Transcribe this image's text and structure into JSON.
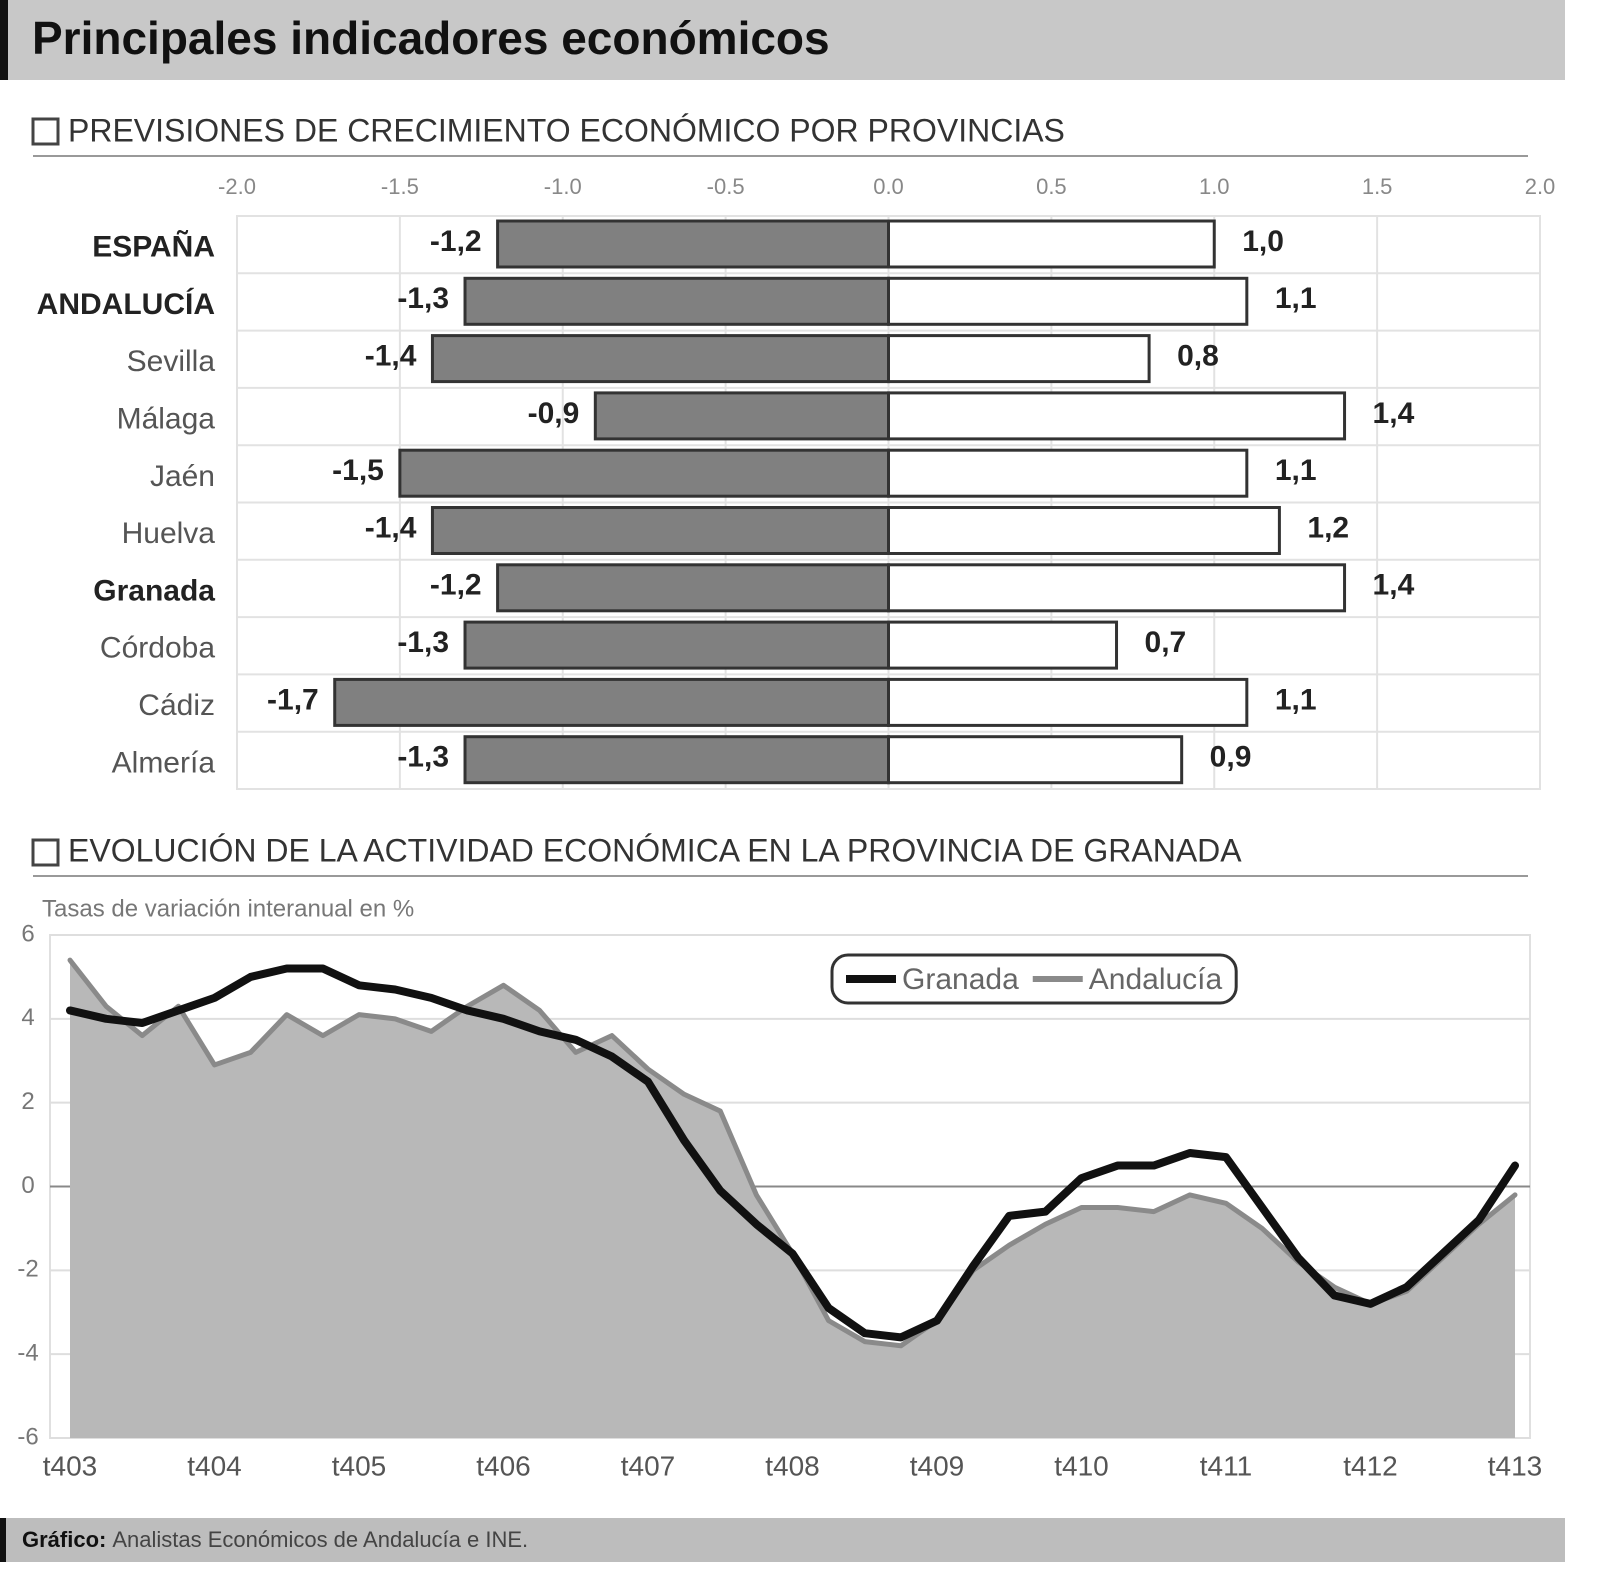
{
  "header": {
    "title": "Principales indicadores económicos"
  },
  "chart_data": [
    {
      "type": "bar",
      "orientation": "horizontal",
      "title": "PREVISIONES DE CRECIMIENTO ECONÓMICO POR PROVINCIAS",
      "categories": [
        "ESPAÑA",
        "ANDALUCÍA",
        "Sevilla",
        "Málaga",
        "Jaén",
        "Huelva",
        "Granada",
        "Córdoba",
        "Cádiz",
        "Almería"
      ],
      "series": [
        {
          "color": "#808080",
          "values": [
            -1.2,
            -1.3,
            -1.4,
            -0.9,
            -1.5,
            -1.4,
            -1.2,
            -1.3,
            -1.7,
            -1.3
          ],
          "value_labels": [
            "-1,2",
            "-1,3",
            "-1,4",
            "-0,9",
            "-1,5",
            "-1,4",
            "-1,2",
            "-1,3",
            "-1,7",
            "-1,3"
          ]
        },
        {
          "color": "#ffffff",
          "values": [
            1.0,
            1.1,
            0.8,
            1.4,
            1.1,
            1.2,
            1.4,
            0.7,
            1.1,
            0.9
          ],
          "value_labels": [
            "1,0",
            "1,1",
            "0,8",
            "1,4",
            "1,1",
            "1,2",
            "1,4",
            "0,7",
            "1,1",
            "0,9"
          ]
        }
      ],
      "xlim": [
        -2,
        2
      ],
      "xticks": [
        {
          "value": -2,
          "label": "-2.0"
        },
        -1.5,
        {
          "value": -1,
          "label": "-1.0"
        },
        -0.5,
        {
          "value": 0,
          "label": "0.0"
        },
        0.5,
        {
          "value": 1,
          "label": "1.0"
        },
        1.5,
        {
          "value": 2,
          "label": "2.0"
        }
      ],
      "grid": true
    },
    {
      "type": "line",
      "title": "EVOLUCIÓN DE LA ACTIVIDAD ECONÓMICA EN LA PROVINCIA DE GRANADA",
      "subtitle": "Tasas de variación interanual en %",
      "categories": [
        "t403",
        null,
        null,
        null,
        "t404",
        null,
        null,
        null,
        "t405",
        null,
        null,
        null,
        "t406",
        null,
        null,
        null,
        "t407",
        null,
        null,
        null,
        "t408",
        null,
        null,
        null,
        "t409",
        null,
        null,
        null,
        "t410",
        null,
        null,
        null,
        "t411",
        null,
        null,
        null,
        "t412",
        null,
        null,
        null,
        "t413"
      ],
      "series": [
        {
          "name": "Granada",
          "color": "#111111",
          "values": [
            4.2,
            4.0,
            3.9,
            4.2,
            4.5,
            5.0,
            5.2,
            5.2,
            4.8,
            4.7,
            4.5,
            4.2,
            4.0,
            3.7,
            3.5,
            3.1,
            2.5,
            1.1,
            -0.1,
            -0.9,
            -1.6,
            -2.9,
            -3.5,
            -3.6,
            -3.2,
            -1.9,
            -0.7,
            -0.6,
            0.2,
            0.5,
            0.5,
            0.8,
            0.7,
            -0.5,
            -1.7,
            -2.6,
            -2.8,
            -2.4,
            -1.6,
            -0.8,
            0.5
          ]
        },
        {
          "name": "Andalucía",
          "color": "#8a8a8a",
          "area": true,
          "area_color": "#b8b8b8",
          "values": [
            5.4,
            4.3,
            3.6,
            4.3,
            2.9,
            3.2,
            4.1,
            3.6,
            4.1,
            4.0,
            3.7,
            4.3,
            4.8,
            4.2,
            3.2,
            3.6,
            2.8,
            2.2,
            1.8,
            -0.2,
            -1.6,
            -3.2,
            -3.7,
            -3.8,
            -3.2,
            -2.0,
            -1.4,
            -0.9,
            -0.5,
            -0.5,
            -0.6,
            -0.2,
            -0.4,
            -1.0,
            -1.8,
            -2.4,
            -2.8,
            -2.5,
            -1.7,
            -0.9,
            -0.2
          ]
        }
      ],
      "ylim": [
        -6,
        6
      ],
      "yticks": [
        6,
        4,
        2,
        0,
        -2,
        -4,
        -6
      ],
      "grid": true,
      "legend": "top-right"
    }
  ],
  "footer": {
    "label": "Gráfico:",
    "text": "Analistas Económicos de Andalucía e INE."
  }
}
